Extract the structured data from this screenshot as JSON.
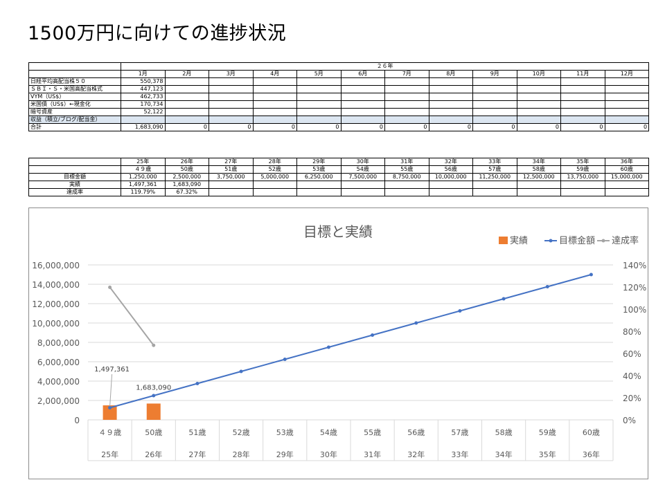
{
  "slide_title": "1500万円に向けての進捗状況",
  "asset_table": {
    "year_header": "２６年",
    "months": [
      "1月",
      "2月",
      "3月",
      "4月",
      "5月",
      "6月",
      "7月",
      "8月",
      "9月",
      "10月",
      "11月",
      "12月"
    ],
    "rows": [
      {
        "label": "日経平均高配当株５０",
        "values": [
          "550,378",
          "",
          "",
          "",
          "",
          "",
          "",
          "",
          "",
          "",
          "",
          ""
        ]
      },
      {
        "label": "ＳＢＩ・Ｓ・米国高配当株式",
        "values": [
          "447,123",
          "",
          "",
          "",
          "",
          "",
          "",
          "",
          "",
          "",
          "",
          ""
        ]
      },
      {
        "label": "VYM（US$）",
        "values": [
          "462,733",
          "",
          "",
          "",
          "",
          "",
          "",
          "",
          "",
          "",
          "",
          ""
        ]
      },
      {
        "label": "米国債（US$）←現金化",
        "values": [
          "170,734",
          "",
          "",
          "",
          "",
          "",
          "",
          "",
          "",
          "",
          "",
          ""
        ]
      },
      {
        "label": "暗号資産",
        "values": [
          "52,122",
          "",
          "",
          "",
          "",
          "",
          "",
          "",
          "",
          "",
          "",
          ""
        ]
      },
      {
        "label": "収益（積立/ブログ/配当金）",
        "values": [
          "",
          "",
          "",
          "",
          "",
          "",
          "",
          "",
          "",
          "",
          "",
          ""
        ]
      },
      {
        "label": "合計",
        "values": [
          "1,683,090",
          "0",
          "0",
          "0",
          "0",
          "0",
          "0",
          "0",
          "0",
          "0",
          "0",
          "0"
        ]
      }
    ]
  },
  "target_table": {
    "years": [
      "25年",
      "26年",
      "27年",
      "28年",
      "29年",
      "30年",
      "31年",
      "32年",
      "33年",
      "34年",
      "35年",
      "36年"
    ],
    "ages": [
      "４９歳",
      "50歳",
      "51歳",
      "52歳",
      "53歳",
      "54歳",
      "55歳",
      "56歳",
      "57歳",
      "58歳",
      "59歳",
      "60歳"
    ],
    "rows": [
      {
        "label": "目標金額",
        "values": [
          "1,250,000",
          "2,500,000",
          "3,750,000",
          "5,000,000",
          "6,250,000",
          "7,500,000",
          "8,750,000",
          "10,000,000",
          "11,250,000",
          "12,500,000",
          "13,750,000",
          "15,000,000"
        ]
      },
      {
        "label": "実績",
        "values": [
          "1,497,361",
          "1,683,090",
          "",
          "",
          "",
          "",
          "",
          "",
          "",
          "",
          "",
          ""
        ]
      },
      {
        "label": "達成率",
        "values": [
          "119.79%",
          "67.32%",
          "",
          "",
          "",
          "",
          "",
          "",
          "",
          "",
          "",
          ""
        ]
      }
    ]
  },
  "chart_data": {
    "type": "bar",
    "title": "目標と実績",
    "categories_age": [
      "４９歳",
      "50歳",
      "51歳",
      "52歳",
      "53歳",
      "54歳",
      "55歳",
      "56歳",
      "57歳",
      "58歳",
      "59歳",
      "60歳"
    ],
    "categories_year": [
      "25年",
      "26年",
      "27年",
      "28年",
      "29年",
      "30年",
      "31年",
      "32年",
      "33年",
      "34年",
      "35年",
      "36年"
    ],
    "series": [
      {
        "name": "実績",
        "kind": "bar",
        "axis": "left",
        "color": "#ed7d31",
        "values": [
          1497361,
          1683090,
          null,
          null,
          null,
          null,
          null,
          null,
          null,
          null,
          null,
          null
        ],
        "labels": [
          "1,497,361",
          "1,683,090"
        ]
      },
      {
        "name": "目標金額",
        "kind": "line",
        "axis": "left",
        "color": "#4472c4",
        "values": [
          1250000,
          2500000,
          3750000,
          5000000,
          6250000,
          7500000,
          8750000,
          10000000,
          11250000,
          12500000,
          13750000,
          15000000
        ]
      },
      {
        "name": "達成率",
        "kind": "line",
        "axis": "right",
        "color": "#a5a5a5",
        "values": [
          119.79,
          67.32,
          null,
          null,
          null,
          null,
          null,
          null,
          null,
          null,
          null,
          null
        ]
      }
    ],
    "y_left": {
      "min": 0,
      "max": 16000000,
      "ticks": [
        "0",
        "2,000,000",
        "4,000,000",
        "6,000,000",
        "8,000,000",
        "10,000,000",
        "12,000,000",
        "14,000,000",
        "16,000,000"
      ]
    },
    "y_right": {
      "min": 0,
      "max": 140,
      "ticks": [
        "0%",
        "20%",
        "40%",
        "60%",
        "80%",
        "100%",
        "120%",
        "140%"
      ]
    },
    "legend_position": "top-right",
    "grid": true
  }
}
